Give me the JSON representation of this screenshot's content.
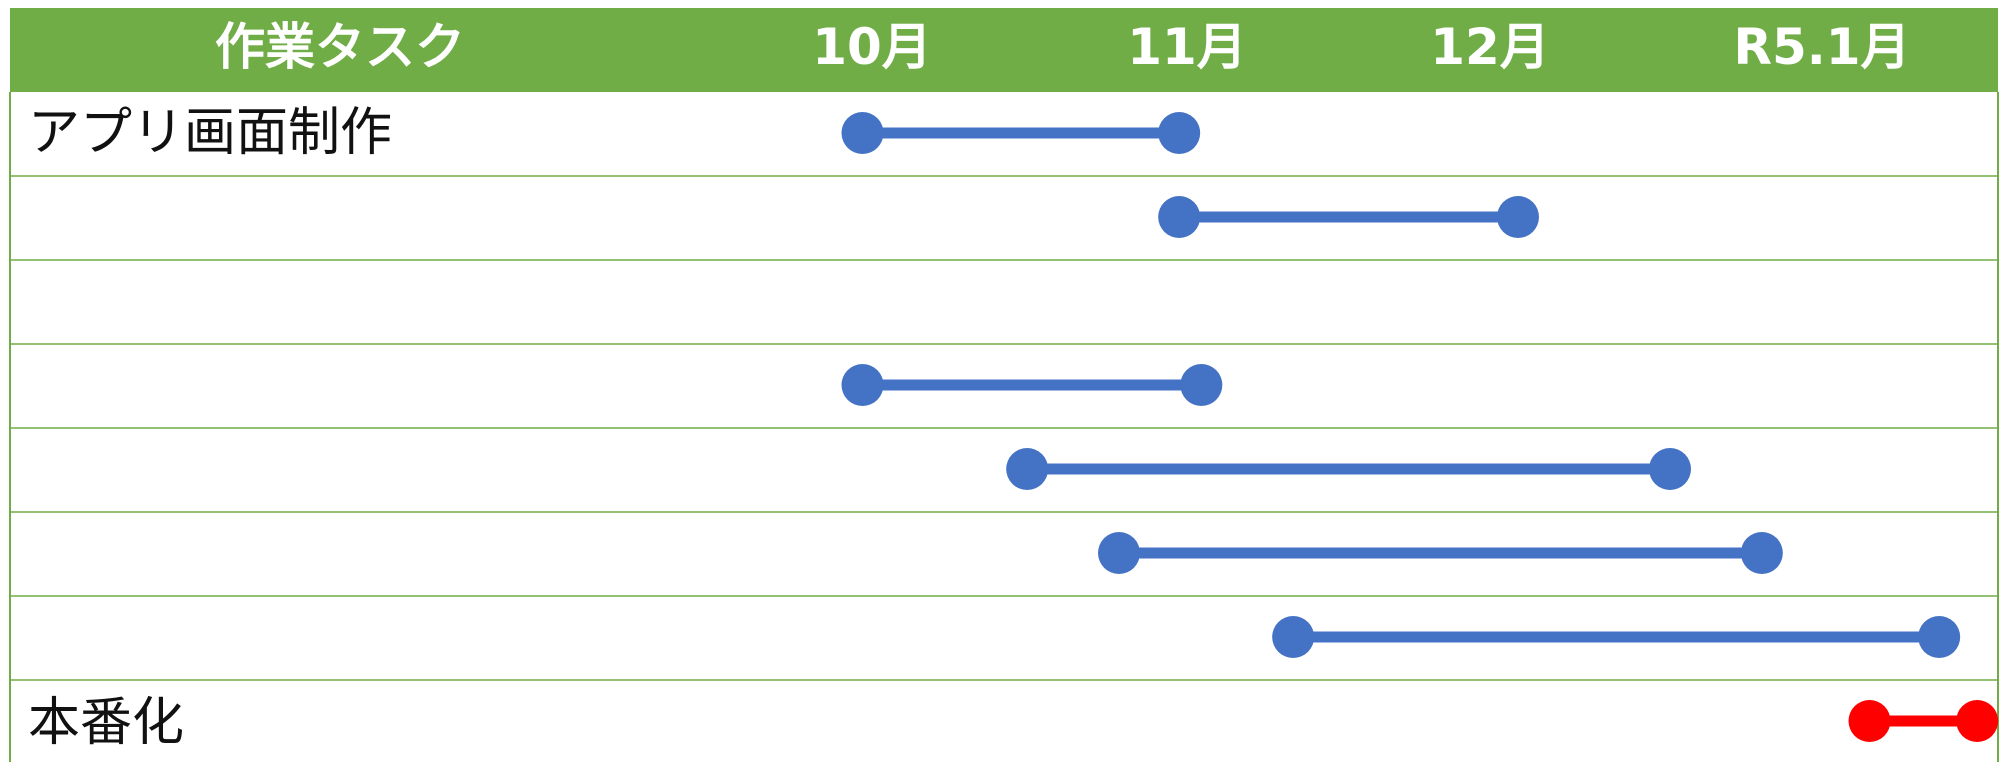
{
  "chart_data": {
    "type": "gantt",
    "header_label": "作業タスク",
    "months": [
      "10月",
      "11月",
      "12月",
      "R5.1月"
    ],
    "tasks": [
      {
        "label": "アプリ画面制作",
        "start": 0.97,
        "end": 1.97,
        "color_key": "normal"
      },
      {
        "label": "",
        "start": 1.97,
        "end": 3.04,
        "color_key": "normal"
      },
      {
        "label": "",
        "start": null,
        "end": null,
        "color_key": "normal"
      },
      {
        "label": "",
        "start": 0.97,
        "end": 2.04,
        "color_key": "normal"
      },
      {
        "label": "",
        "start": 1.49,
        "end": 3.52,
        "color_key": "normal"
      },
      {
        "label": "",
        "start": 1.78,
        "end": 3.81,
        "color_key": "normal"
      },
      {
        "label": "",
        "start": 2.33,
        "end": 4.37,
        "color_key": "normal"
      },
      {
        "label": "本番化",
        "start": 4.15,
        "end": 4.49,
        "color_key": "highlight"
      }
    ],
    "colors": {
      "header_bg": "#70AD47",
      "grid_line": "#70AD47",
      "normal": "#4472C4",
      "highlight": "#FF0000"
    }
  }
}
